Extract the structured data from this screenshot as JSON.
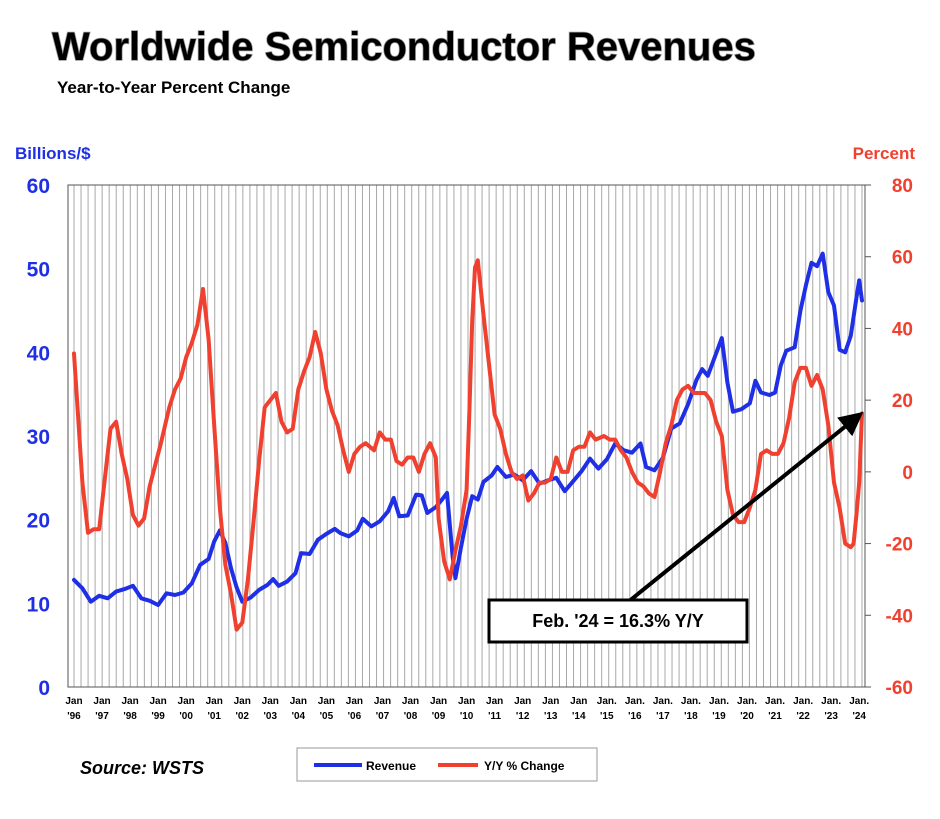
{
  "chart_data": {
    "type": "line",
    "title": "Worldwide Semiconductor Revenues",
    "subtitle": "Year-to-Year Percent Change",
    "y_left_label": "Billions/$",
    "y_right_label": "Percent",
    "y_left_ticks": [
      "60",
      "50",
      "40",
      "30",
      "20",
      "10",
      "0"
    ],
    "y_right_ticks": [
      "80",
      "60",
      "40",
      "20",
      "0",
      "-20",
      "-40",
      "-60"
    ],
    "y_left_range": [
      0,
      60
    ],
    "y_right_range": [
      -60,
      80
    ],
    "x_range": [
      1996.0,
      2024.1
    ],
    "x_ticks": [
      {
        "top": "Jan",
        "bottom": "'96"
      },
      {
        "top": "Jan",
        "bottom": "'97"
      },
      {
        "top": "Jan",
        "bottom": "'98"
      },
      {
        "top": "Jan",
        "bottom": "'99"
      },
      {
        "top": "Jan",
        "bottom": "'00"
      },
      {
        "top": "Jan",
        "bottom": "'01"
      },
      {
        "top": "Jan",
        "bottom": "'02"
      },
      {
        "top": "Jan",
        "bottom": "'03"
      },
      {
        "top": "Jan",
        "bottom": "'04"
      },
      {
        "top": "Jan",
        "bottom": "'05"
      },
      {
        "top": "Jan",
        "bottom": "'06"
      },
      {
        "top": "Jan",
        "bottom": "'07"
      },
      {
        "top": "Jan",
        "bottom": "'08"
      },
      {
        "top": "Jan",
        "bottom": "'09"
      },
      {
        "top": "Jan",
        "bottom": "'10"
      },
      {
        "top": "Jan",
        "bottom": "'11"
      },
      {
        "top": "Jan",
        "bottom": "'12"
      },
      {
        "top": "Jan",
        "bottom": "'13"
      },
      {
        "top": "Jan",
        "bottom": "'14"
      },
      {
        "top": "Jan.",
        "bottom": "'15"
      },
      {
        "top": "Jan.",
        "bottom": "'16"
      },
      {
        "top": "Jan.",
        "bottom": "'17"
      },
      {
        "top": "Jan.",
        "bottom": "'18"
      },
      {
        "top": "Jan.",
        "bottom": "'19"
      },
      {
        "top": "Jan.",
        "bottom": "'20"
      },
      {
        "top": "Jan.",
        "bottom": "'21"
      },
      {
        "top": "Jan.",
        "bottom": "'22"
      },
      {
        "top": "Jan.",
        "bottom": "'23"
      },
      {
        "top": "Jan.",
        "bottom": "'24"
      }
    ],
    "grid": "vertical",
    "legend_position": "bottom",
    "series": [
      {
        "name": "Revenue",
        "axis": "left",
        "color": "#1f2fe6",
        "points": [
          [
            1996.0,
            12.8
          ],
          [
            1996.3,
            11.8
          ],
          [
            1996.6,
            10.2
          ],
          [
            1996.9,
            10.9
          ],
          [
            1997.2,
            10.6
          ],
          [
            1997.5,
            11.4
          ],
          [
            1997.8,
            11.7
          ],
          [
            1998.1,
            12.1
          ],
          [
            1998.4,
            10.6
          ],
          [
            1998.7,
            10.3
          ],
          [
            1999.0,
            9.8
          ],
          [
            1999.3,
            11.2
          ],
          [
            1999.6,
            11.0
          ],
          [
            1999.9,
            11.3
          ],
          [
            2000.2,
            12.4
          ],
          [
            2000.5,
            14.6
          ],
          [
            2000.8,
            15.3
          ],
          [
            2001.0,
            17.4
          ],
          [
            2001.2,
            18.7
          ],
          [
            2001.4,
            17.2
          ],
          [
            2001.6,
            14.2
          ],
          [
            2001.8,
            11.9
          ],
          [
            2002.0,
            10.2
          ],
          [
            2002.3,
            10.7
          ],
          [
            2002.6,
            11.6
          ],
          [
            2002.9,
            12.2
          ],
          [
            2003.1,
            12.9
          ],
          [
            2003.3,
            12.1
          ],
          [
            2003.6,
            12.6
          ],
          [
            2003.9,
            13.6
          ],
          [
            2004.1,
            16.0
          ],
          [
            2004.4,
            15.9
          ],
          [
            2004.7,
            17.6
          ],
          [
            2005.0,
            18.3
          ],
          [
            2005.3,
            18.9
          ],
          [
            2005.5,
            18.4
          ],
          [
            2005.8,
            18.0
          ],
          [
            2006.1,
            18.7
          ],
          [
            2006.3,
            20.1
          ],
          [
            2006.6,
            19.2
          ],
          [
            2006.9,
            19.8
          ],
          [
            2007.2,
            21.0
          ],
          [
            2007.4,
            22.6
          ],
          [
            2007.6,
            20.4
          ],
          [
            2007.9,
            20.5
          ],
          [
            2008.2,
            23.0
          ],
          [
            2008.4,
            22.9
          ],
          [
            2008.6,
            20.8
          ],
          [
            2008.9,
            21.5
          ],
          [
            2009.1,
            22.3
          ],
          [
            2009.3,
            23.2
          ],
          [
            2009.5,
            15.6
          ],
          [
            2009.6,
            13.0
          ],
          [
            2009.8,
            16.7
          ],
          [
            2010.0,
            20.1
          ],
          [
            2010.2,
            22.8
          ],
          [
            2010.4,
            22.4
          ],
          [
            2010.6,
            24.5
          ],
          [
            2010.9,
            25.3
          ],
          [
            2011.1,
            26.3
          ],
          [
            2011.4,
            25.1
          ],
          [
            2011.7,
            25.4
          ],
          [
            2012.0,
            24.7
          ],
          [
            2012.3,
            25.8
          ],
          [
            2012.6,
            24.3
          ],
          [
            2012.9,
            24.7
          ],
          [
            2013.2,
            25.0
          ],
          [
            2013.5,
            23.4
          ],
          [
            2013.8,
            24.6
          ],
          [
            2014.1,
            25.8
          ],
          [
            2014.4,
            27.3
          ],
          [
            2014.7,
            26.1
          ],
          [
            2015.0,
            27.2
          ],
          [
            2015.3,
            29.1
          ],
          [
            2015.6,
            28.3
          ],
          [
            2015.9,
            28.0
          ],
          [
            2016.2,
            29.1
          ],
          [
            2016.4,
            26.3
          ],
          [
            2016.7,
            25.9
          ],
          [
            2017.0,
            27.4
          ],
          [
            2017.3,
            30.9
          ],
          [
            2017.6,
            31.5
          ],
          [
            2017.9,
            33.8
          ],
          [
            2018.2,
            36.7
          ],
          [
            2018.4,
            38.0
          ],
          [
            2018.6,
            37.2
          ],
          [
            2018.9,
            39.9
          ],
          [
            2019.1,
            41.7
          ],
          [
            2019.3,
            36.4
          ],
          [
            2019.5,
            32.9
          ],
          [
            2019.8,
            33.2
          ],
          [
            2020.1,
            33.9
          ],
          [
            2020.3,
            36.6
          ],
          [
            2020.5,
            35.2
          ],
          [
            2020.8,
            34.9
          ],
          [
            2021.0,
            35.2
          ],
          [
            2021.2,
            38.4
          ],
          [
            2021.4,
            40.2
          ],
          [
            2021.7,
            40.6
          ],
          [
            2021.9,
            44.9
          ],
          [
            2022.1,
            48.0
          ],
          [
            2022.3,
            50.7
          ],
          [
            2022.5,
            50.3
          ],
          [
            2022.7,
            51.8
          ],
          [
            2022.9,
            47.2
          ],
          [
            2023.1,
            45.6
          ],
          [
            2023.3,
            40.3
          ],
          [
            2023.5,
            40.0
          ],
          [
            2023.7,
            42.0
          ],
          [
            2023.9,
            46.5
          ],
          [
            2024.0,
            48.6
          ],
          [
            2024.1,
            46.2
          ]
        ]
      },
      {
        "name": "Y/Y % Change",
        "axis": "right",
        "color": "#f0402f",
        "points": [
          [
            1996.0,
            33
          ],
          [
            1996.3,
            -3
          ],
          [
            1996.5,
            -17
          ],
          [
            1996.7,
            -16
          ],
          [
            1996.9,
            -16
          ],
          [
            1997.1,
            -2
          ],
          [
            1997.3,
            12
          ],
          [
            1997.5,
            14
          ],
          [
            1997.7,
            5
          ],
          [
            1997.9,
            -2
          ],
          [
            1998.1,
            -12
          ],
          [
            1998.3,
            -15
          ],
          [
            1998.5,
            -13
          ],
          [
            1998.7,
            -4
          ],
          [
            1998.9,
            2
          ],
          [
            1999.1,
            8
          ],
          [
            1999.4,
            18
          ],
          [
            1999.6,
            23
          ],
          [
            1999.8,
            26
          ],
          [
            2000.0,
            32
          ],
          [
            2000.2,
            36
          ],
          [
            2000.4,
            41
          ],
          [
            2000.6,
            51
          ],
          [
            2000.8,
            37
          ],
          [
            2001.0,
            13
          ],
          [
            2001.2,
            -10
          ],
          [
            2001.4,
            -26
          ],
          [
            2001.6,
            -34
          ],
          [
            2001.8,
            -44
          ],
          [
            2002.0,
            -42
          ],
          [
            2002.2,
            -30
          ],
          [
            2002.4,
            -14
          ],
          [
            2002.6,
            3
          ],
          [
            2002.8,
            18
          ],
          [
            2003.0,
            20
          ],
          [
            2003.2,
            22
          ],
          [
            2003.4,
            14
          ],
          [
            2003.6,
            11
          ],
          [
            2003.8,
            12
          ],
          [
            2004.0,
            23
          ],
          [
            2004.2,
            28
          ],
          [
            2004.4,
            32
          ],
          [
            2004.6,
            39
          ],
          [
            2004.8,
            33
          ],
          [
            2005.0,
            23
          ],
          [
            2005.2,
            17
          ],
          [
            2005.4,
            13
          ],
          [
            2005.6,
            6
          ],
          [
            2005.8,
            0
          ],
          [
            2006.0,
            5
          ],
          [
            2006.2,
            7
          ],
          [
            2006.4,
            8
          ],
          [
            2006.7,
            6
          ],
          [
            2006.9,
            11
          ],
          [
            2007.1,
            9
          ],
          [
            2007.3,
            9
          ],
          [
            2007.5,
            3
          ],
          [
            2007.7,
            2
          ],
          [
            2007.9,
            4
          ],
          [
            2008.1,
            4
          ],
          [
            2008.3,
            0
          ],
          [
            2008.5,
            5
          ],
          [
            2008.7,
            8
          ],
          [
            2008.9,
            4
          ],
          [
            2009.0,
            -13
          ],
          [
            2009.2,
            -25
          ],
          [
            2009.4,
            -30
          ],
          [
            2009.6,
            -22
          ],
          [
            2009.8,
            -15
          ],
          [
            2010.0,
            -5
          ],
          [
            2010.1,
            17
          ],
          [
            2010.2,
            42
          ],
          [
            2010.3,
            57
          ],
          [
            2010.4,
            59
          ],
          [
            2010.6,
            44
          ],
          [
            2010.8,
            30
          ],
          [
            2011.0,
            16
          ],
          [
            2011.2,
            12
          ],
          [
            2011.4,
            5
          ],
          [
            2011.6,
            0
          ],
          [
            2011.8,
            -2
          ],
          [
            2012.0,
            -1
          ],
          [
            2012.2,
            -8
          ],
          [
            2012.4,
            -6
          ],
          [
            2012.6,
            -3
          ],
          [
            2012.8,
            -3
          ],
          [
            2013.0,
            -2
          ],
          [
            2013.2,
            4
          ],
          [
            2013.4,
            0
          ],
          [
            2013.6,
            0
          ],
          [
            2013.8,
            6
          ],
          [
            2014.0,
            7
          ],
          [
            2014.2,
            7
          ],
          [
            2014.4,
            11
          ],
          [
            2014.6,
            9
          ],
          [
            2014.9,
            10
          ],
          [
            2015.1,
            9
          ],
          [
            2015.3,
            9
          ],
          [
            2015.5,
            6
          ],
          [
            2015.7,
            4
          ],
          [
            2015.9,
            0
          ],
          [
            2016.1,
            -3
          ],
          [
            2016.3,
            -4
          ],
          [
            2016.5,
            -6
          ],
          [
            2016.7,
            -7
          ],
          [
            2016.9,
            0
          ],
          [
            2017.1,
            8
          ],
          [
            2017.3,
            13
          ],
          [
            2017.5,
            20
          ],
          [
            2017.7,
            23
          ],
          [
            2017.9,
            24
          ],
          [
            2018.1,
            22
          ],
          [
            2018.3,
            22
          ],
          [
            2018.5,
            22
          ],
          [
            2018.7,
            20
          ],
          [
            2018.9,
            14
          ],
          [
            2019.1,
            10
          ],
          [
            2019.3,
            -5
          ],
          [
            2019.5,
            -12
          ],
          [
            2019.7,
            -14
          ],
          [
            2019.9,
            -14
          ],
          [
            2020.1,
            -10
          ],
          [
            2020.3,
            -5
          ],
          [
            2020.5,
            5
          ],
          [
            2020.7,
            6
          ],
          [
            2020.9,
            5
          ],
          [
            2021.1,
            5
          ],
          [
            2021.3,
            8
          ],
          [
            2021.5,
            15
          ],
          [
            2021.7,
            25
          ],
          [
            2021.9,
            29
          ],
          [
            2022.1,
            29
          ],
          [
            2022.3,
            24
          ],
          [
            2022.5,
            27
          ],
          [
            2022.7,
            23
          ],
          [
            2022.9,
            13
          ],
          [
            2023.1,
            -3
          ],
          [
            2023.3,
            -10
          ],
          [
            2023.5,
            -20
          ],
          [
            2023.7,
            -21
          ],
          [
            2023.8,
            -20
          ],
          [
            2023.9,
            -12
          ],
          [
            2024.0,
            -3
          ],
          [
            2024.1,
            16.3
          ]
        ]
      }
    ],
    "annotation": {
      "text": "Feb. '24 = 16.3% Y/Y",
      "points_to": [
        2024.1,
        16.3
      ],
      "points_to_axis": "right"
    },
    "legend": [
      "Revenue",
      "Y/Y % Change"
    ],
    "source": "Source: WSTS"
  }
}
